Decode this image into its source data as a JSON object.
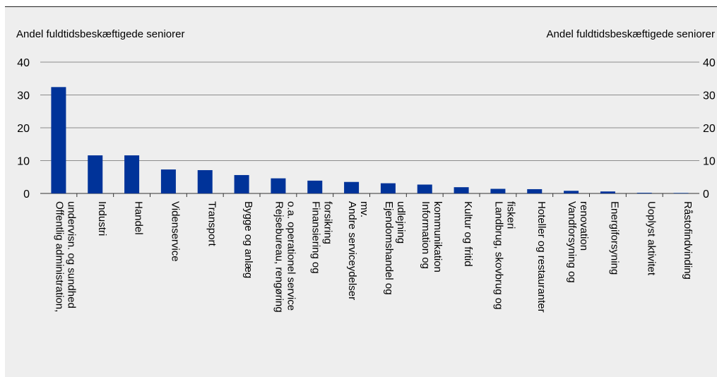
{
  "chart_data": {
    "type": "bar",
    "ylabel_left": "Andel fuldtidsbeskæftigede seniorer",
    "ylabel_right": "Andel fuldtidsbeskæftigede seniorer",
    "ylim": [
      0,
      40
    ],
    "yticks": [
      0,
      10,
      20,
      30,
      40
    ],
    "grid": true,
    "bar_color": "#003399",
    "categories": [
      [
        "Offentlig administration,",
        "undervisn. og sundhed"
      ],
      [
        "Industri"
      ],
      [
        "Handel"
      ],
      [
        "Videnservice"
      ],
      [
        "Transport"
      ],
      [
        "Bygge og anlæg"
      ],
      [
        "Rejsebureau, rengøring",
        "o.a. operationel service"
      ],
      [
        "Finansiering og",
        "forsikring"
      ],
      [
        "Andre serviceydelser",
        "mv."
      ],
      [
        "Ejendomshandel og",
        "udlejning"
      ],
      [
        "Information og",
        "kommunikation"
      ],
      [
        "Kultur og fritid"
      ],
      [
        "Landbrug, skovbrug og",
        "fiskeri"
      ],
      [
        "Hoteller og restauranter"
      ],
      [
        "Vandforsyning og",
        "renovation"
      ],
      [
        "Energiforsyning"
      ],
      [
        "Uoplyst aktivitet"
      ],
      [
        "Råstofindvinding"
      ]
    ],
    "values": [
      32.4,
      11.6,
      11.6,
      7.3,
      7.1,
      5.6,
      4.6,
      3.9,
      3.5,
      3.1,
      2.7,
      1.9,
      1.4,
      1.3,
      0.8,
      0.6,
      0.2,
      0.15
    ]
  }
}
